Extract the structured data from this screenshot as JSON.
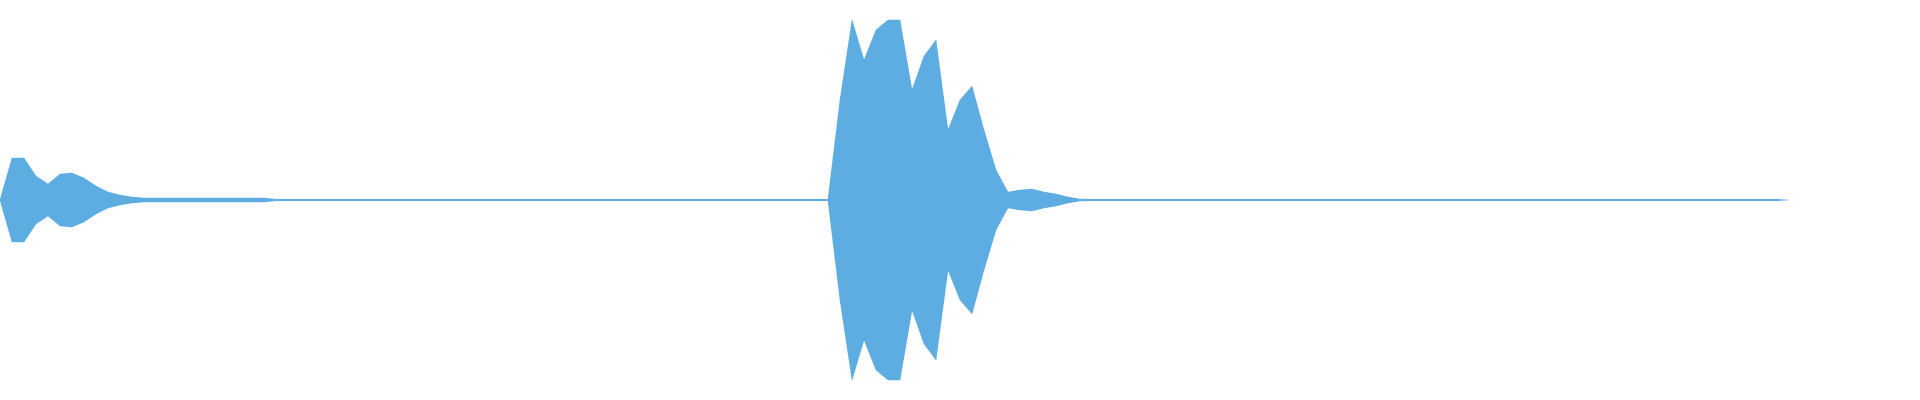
{
  "chart_data": {
    "type": "area",
    "title": "",
    "xlabel": "",
    "ylabel": "",
    "ylim": [
      -1,
      1
    ],
    "grid": false,
    "legend": "none",
    "color": "#5dade2",
    "background": "#ffffff",
    "symmetric_envelope": true,
    "amplitude": [
      0,
      0.21,
      0.21,
      0.12,
      0.08,
      0.13,
      0.135,
      0.11,
      0.07,
      0.04,
      0.025,
      0.015,
      0.01,
      0.01,
      0.01,
      0.01,
      0.01,
      0.01,
      0.01,
      0.01,
      0.01,
      0.01,
      0.01,
      0.003,
      0.003,
      0.003,
      0.003,
      0.003,
      0.003,
      0.003,
      0.003,
      0.003,
      0.003,
      0.003,
      0.003,
      0.003,
      0.003,
      0.003,
      0.003,
      0.003,
      0.003,
      0.003,
      0.003,
      0.003,
      0.003,
      0.003,
      0.003,
      0.003,
      0.003,
      0.003,
      0.003,
      0.003,
      0.003,
      0.003,
      0.003,
      0.003,
      0.003,
      0.003,
      0.003,
      0.003,
      0.003,
      0.003,
      0.003,
      0.003,
      0.003,
      0.003,
      0.003,
      0.003,
      0.003,
      0.003,
      0.5,
      0.9,
      0.7,
      0.85,
      0.9,
      0.9,
      0.55,
      0.72,
      0.8,
      0.35,
      0.5,
      0.57,
      0.35,
      0.15,
      0.04,
      0.05,
      0.055,
      0.04,
      0.03,
      0.015,
      0.005,
      0.003,
      0.003,
      0.003,
      0.003,
      0.003,
      0.003,
      0.003,
      0.003,
      0.003,
      0.003,
      0.003,
      0.003,
      0.003,
      0.003,
      0.003,
      0.003,
      0.003,
      0.003,
      0.003,
      0.003,
      0.003,
      0.003,
      0.003,
      0.003,
      0.003,
      0.003,
      0.003,
      0.003,
      0.003,
      0.003,
      0.003,
      0.003,
      0.003,
      0.003,
      0.003,
      0.003,
      0.003,
      0.003,
      0.003,
      0.003,
      0.003,
      0.003,
      0.003,
      0.003,
      0.003,
      0.003,
      0.003,
      0.003,
      0.003,
      0.003,
      0.003,
      0.003,
      0.003,
      0.003,
      0.003,
      0.003,
      0.003,
      0.003,
      0,
      0,
      0,
      0,
      0,
      0,
      0,
      0,
      0,
      0,
      0
    ]
  }
}
